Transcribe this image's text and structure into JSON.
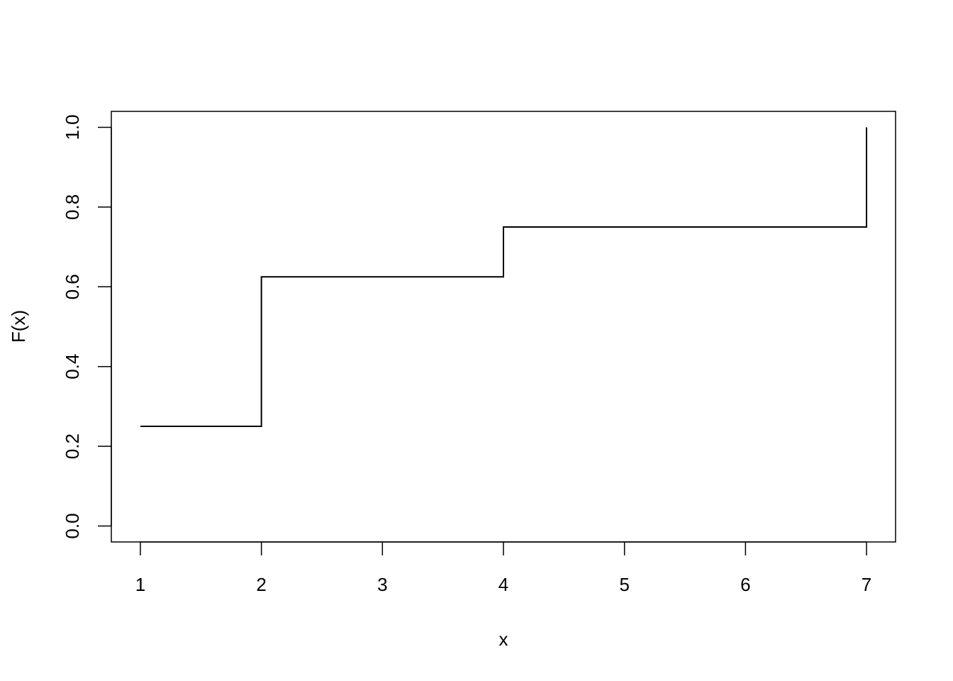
{
  "chart_data": {
    "type": "line",
    "step": "post",
    "x": [
      1,
      2,
      4,
      7
    ],
    "y": [
      0.25,
      0.625,
      0.75,
      1.0
    ],
    "title": "",
    "xlabel": "x",
    "ylabel": "F(x)",
    "xlim": [
      0.76,
      7.24
    ],
    "ylim": [
      -0.04,
      1.04
    ],
    "xticks": [
      1,
      2,
      3,
      4,
      5,
      6,
      7
    ],
    "xtick_labels": [
      "1",
      "2",
      "3",
      "4",
      "5",
      "6",
      "7"
    ],
    "yticks": [
      0,
      0.2,
      0.4,
      0.6,
      0.8,
      1.0
    ],
    "ytick_labels": [
      "0.0",
      "0.2",
      "0.4",
      "0.6",
      "0.8",
      "1.0"
    ],
    "grid": false,
    "line_color": "#000000"
  }
}
